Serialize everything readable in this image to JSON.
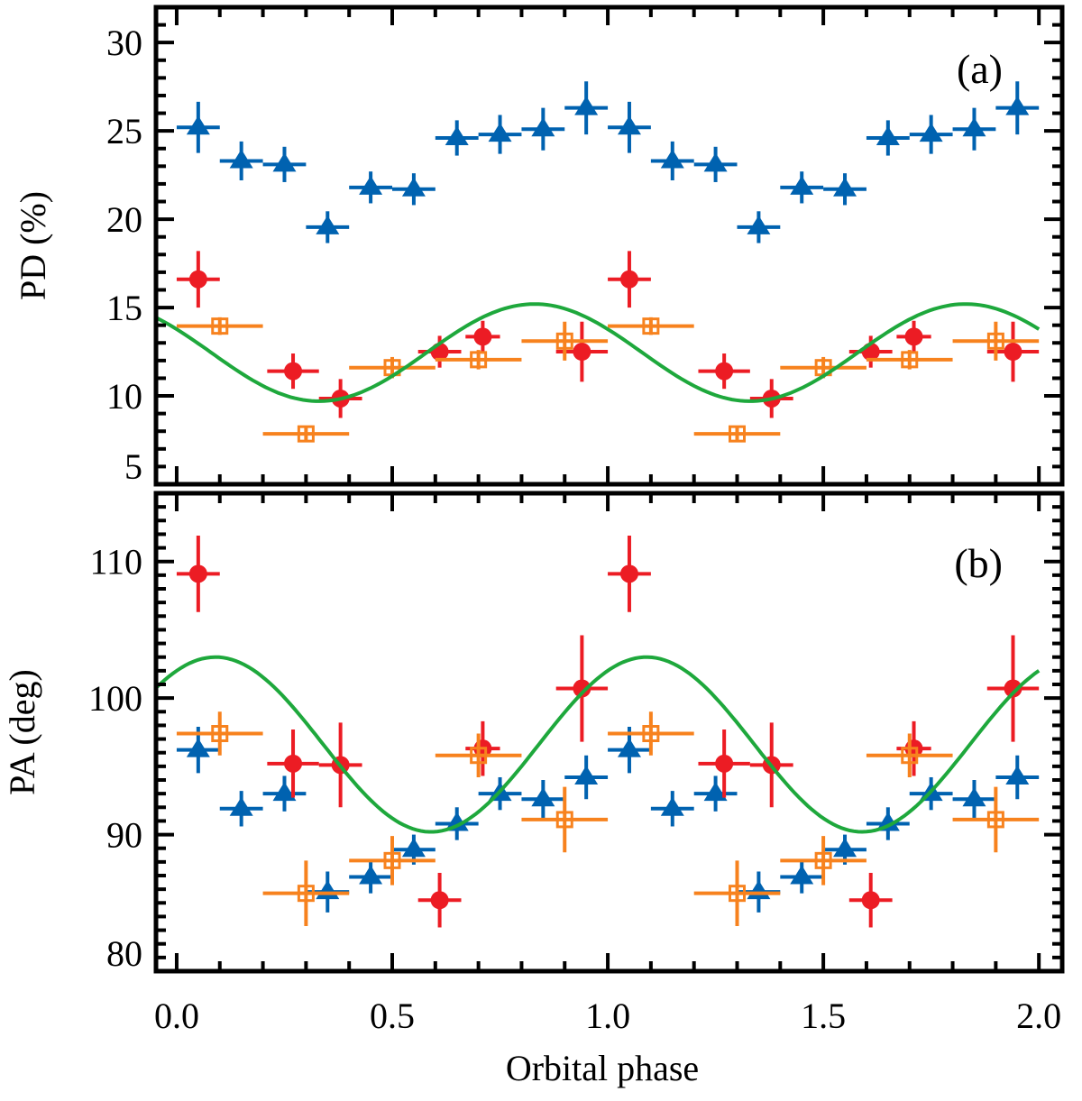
{
  "chart_data": {
    "type": "scatter",
    "xlabel": "Orbital phase",
    "xlim": [
      -0.048,
      2.054
    ],
    "x_ticks": [
      "0.0",
      "0.5",
      "1.0",
      "1.5",
      "2.0"
    ],
    "x_tick_values": [
      0.0,
      0.5,
      1.0,
      1.5,
      2.0
    ],
    "x_minor_step": 0.1,
    "repeat_period": 1.0,
    "colors": {
      "blue": "#0062b0",
      "red": "#ec1c24",
      "orange": "#f7821e",
      "green": "#1ea83c",
      "axis": "#000000"
    },
    "panels": [
      {
        "id": "pd",
        "label": "(a)",
        "ylabel": "PD (%)",
        "ylim": [
          5,
          32
        ],
        "y_ticks": [
          "5",
          "10",
          "15",
          "20",
          "25",
          "30"
        ],
        "y_tick_values": [
          5,
          10,
          15,
          20,
          25,
          30
        ],
        "y_minor_step": 1,
        "series": [
          {
            "name": "blue-triangles",
            "color_key": "blue",
            "marker": "triangle",
            "x": [
              0.05,
              0.15,
              0.25,
              0.35,
              0.45,
              0.55,
              0.65,
              0.75,
              0.85,
              0.95
            ],
            "xerr": [
              0.05,
              0.05,
              0.05,
              0.05,
              0.05,
              0.05,
              0.05,
              0.05,
              0.05,
              0.05
            ],
            "y": [
              25.2,
              23.3,
              23.1,
              19.55,
              21.8,
              21.7,
              24.6,
              24.8,
              25.1,
              26.3
            ],
            "yerr": [
              1.45,
              1.1,
              1.0,
              0.9,
              0.9,
              0.9,
              1.0,
              1.1,
              1.2,
              1.5
            ]
          },
          {
            "name": "red-circles",
            "color_key": "red",
            "marker": "circle",
            "x": [
              0.05,
              0.27,
              0.38,
              0.61,
              0.71,
              0.94
            ],
            "xerr": [
              0.05,
              0.06,
              0.05,
              0.05,
              0.04,
              0.06
            ],
            "y": [
              16.6,
              11.4,
              9.85,
              12.5,
              13.35,
              12.5
            ],
            "yerr": [
              1.6,
              1.0,
              1.1,
              0.9,
              0.9,
              1.7
            ]
          },
          {
            "name": "orange-squares",
            "color_key": "orange",
            "marker": "square-cross",
            "x": [
              0.1,
              0.3,
              0.5,
              0.7,
              0.9
            ],
            "xerr": [
              0.1,
              0.1,
              0.1,
              0.1,
              0.1
            ],
            "y": [
              13.95,
              7.85,
              11.6,
              12.05,
              13.1
            ],
            "yerr": [
              0.5,
              0.45,
              0.6,
              0.55,
              1.1
            ]
          }
        ],
        "model": {
          "name": "pd-model-curve",
          "color_key": "green",
          "form": "mean + amp*cos(2*pi*(phase - phase_peak))",
          "mean": 12.45,
          "amp": 2.75,
          "phase_peak": 0.83
        }
      },
      {
        "id": "pa",
        "label": "(b)",
        "ylabel": "PA (deg)",
        "ylim": [
          80,
          115
        ],
        "y_ticks": [
          "80",
          "90",
          "100",
          "110"
        ],
        "y_tick_values": [
          80,
          90,
          100,
          110
        ],
        "y_minor_step": 1,
        "series": [
          {
            "name": "blue-triangles",
            "color_key": "blue",
            "marker": "triangle",
            "x": [
              0.05,
              0.15,
              0.25,
              0.35,
              0.45,
              0.55,
              0.65,
              0.75,
              0.85,
              0.95
            ],
            "xerr": [
              0.05,
              0.05,
              0.05,
              0.05,
              0.05,
              0.05,
              0.05,
              0.05,
              0.05,
              0.05
            ],
            "y": [
              96.2,
              91.9,
              93.0,
              85.8,
              86.9,
              88.9,
              90.8,
              93.0,
              92.6,
              94.2
            ],
            "yerr": [
              1.7,
              1.3,
              1.3,
              1.5,
              1.2,
              1.1,
              1.2,
              1.2,
              1.4,
              1.6
            ]
          },
          {
            "name": "red-circles",
            "color_key": "red",
            "marker": "circle",
            "x": [
              0.05,
              0.27,
              0.38,
              0.61,
              0.71,
              0.94
            ],
            "xerr": [
              0.05,
              0.06,
              0.05,
              0.05,
              0.04,
              0.06
            ],
            "y": [
              109.1,
              95.2,
              95.1,
              85.2,
              96.3,
              100.7
            ],
            "yerr": [
              2.8,
              2.5,
              3.1,
              2.0,
              2.0,
              3.9
            ]
          },
          {
            "name": "orange-squares",
            "color_key": "orange",
            "marker": "square-cross",
            "x": [
              0.1,
              0.3,
              0.5,
              0.7,
              0.9
            ],
            "xerr": [
              0.1,
              0.1,
              0.1,
              0.1,
              0.1
            ],
            "y": [
              97.4,
              85.7,
              88.1,
              95.8,
              91.1
            ],
            "yerr": [
              1.6,
              2.4,
              1.8,
              1.6,
              2.4
            ]
          }
        ],
        "model": {
          "name": "pa-model-curve",
          "color_key": "green",
          "form": "mean + amp*cos(2*pi*(phase - phase_peak))",
          "mean": 96.6,
          "amp": 6.4,
          "phase_peak": 0.09
        }
      }
    ]
  }
}
